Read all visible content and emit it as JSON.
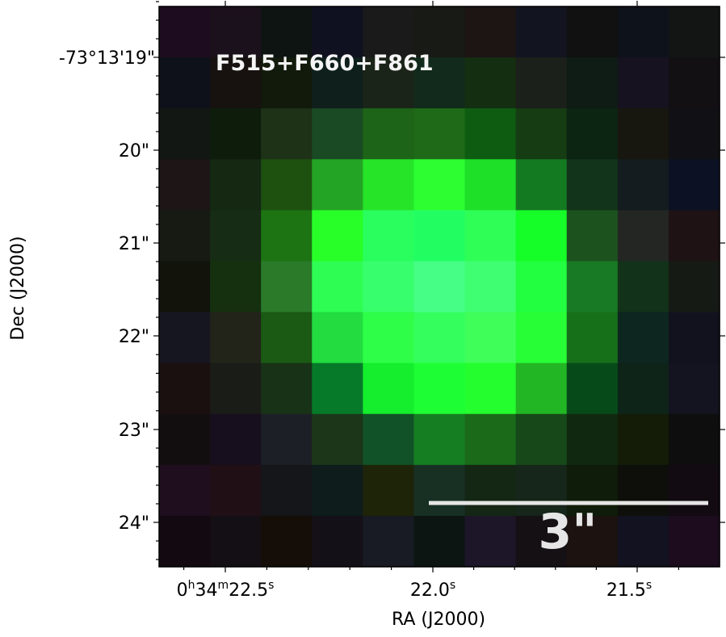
{
  "image": {
    "filter_label": "F515+F660+F861",
    "scalebar_label": "3\"",
    "axes": {
      "xlabel": "RA (J2000)",
      "ylabel": "Dec (J2000)",
      "x_ticks": [
        {
          "h": "0",
          "m": "34",
          "s": "22.5",
          "label_parts": [
            "0",
            "h",
            "34",
            "m",
            "22.5",
            "s"
          ]
        },
        {
          "s": "22.0",
          "label_parts": [
            "22.0",
            "s"
          ]
        },
        {
          "s": "21.5",
          "label_parts": [
            "21.5",
            "s"
          ]
        }
      ],
      "y_ticks": [
        "-73°13'19\"",
        "20\"",
        "21\"",
        "22\"",
        "23\"",
        "24\""
      ]
    },
    "pixel_grid": {
      "rows": 11,
      "cols": 11,
      "colors": [
        [
          "#1d0c1f",
          "#1b111c",
          "#0e1412",
          "#0f1120",
          "#1a1a1a",
          "#171a15",
          "#1d1414",
          "#121520",
          "#111111",
          "#0e121a",
          "#131515"
        ],
        [
          "#0f111a",
          "#17120f",
          "#121a0c",
          "#0f1f1c",
          "#1b2418",
          "#122a1b",
          "#142e11",
          "#1b201a",
          "#0f1c15",
          "#16121f",
          "#121013"
        ],
        [
          "#121713",
          "#0e1c0b",
          "#1e3218",
          "#1a4a24",
          "#1e6418",
          "#1e6a18",
          "#0e5c12",
          "#163c14",
          "#0c2412",
          "#171710",
          "#111115"
        ],
        [
          "#1e1516",
          "#142812",
          "#1e5010",
          "#24a424",
          "#26e428",
          "#2cfe32",
          "#1ee028",
          "#147a22",
          "#12341a",
          "#141c20",
          "#0c1224"
        ],
        [
          "#161a12",
          "#162c14",
          "#1c7412",
          "#28fe28",
          "#2afe5e",
          "#22fe62",
          "#2efe56",
          "#16fe28",
          "#1c521e",
          "#242624",
          "#1e1214"
        ],
        [
          "#12140c",
          "#14300e",
          "#2a7a2a",
          "#2efe54",
          "#36fe6c",
          "#46fe86",
          "#40fe72",
          "#22fe40",
          "#187a24",
          "#12321a",
          "#161a14"
        ],
        [
          "#161620",
          "#22241a",
          "#1a5a14",
          "#22dc40",
          "#2efe48",
          "#34fe5e",
          "#40fe5a",
          "#28fe36",
          "#16701a",
          "#0e2620",
          "#12121e"
        ],
        [
          "#1a1010",
          "#1a1c18",
          "#183218",
          "#067a28",
          "#14ee2c",
          "#1efe34",
          "#24fe2e",
          "#22b624",
          "#064a1a",
          "#0e2418",
          "#141420"
        ],
        [
          "#120e10",
          "#180f1e",
          "#1c2026",
          "#1c361a",
          "#125228",
          "#167e22",
          "#1a6a1a",
          "#16481a",
          "#102810",
          "#141c08",
          "#0e0e0e"
        ],
        [
          "#1e0e1e",
          "#201016",
          "#14161a",
          "#0e1c1c",
          "#1e2408",
          "#183024",
          "#142614",
          "#16261a",
          "#0f1c09",
          "#0e0f0a",
          "#120b12"
        ],
        [
          "#130a11",
          "#140f14",
          "#150d07",
          "#141018",
          "#181b24",
          "#0d1512",
          "#1c1628",
          "#141014",
          "#1c1210",
          "#121220",
          "#1c0c1e"
        ]
      ]
    }
  }
}
